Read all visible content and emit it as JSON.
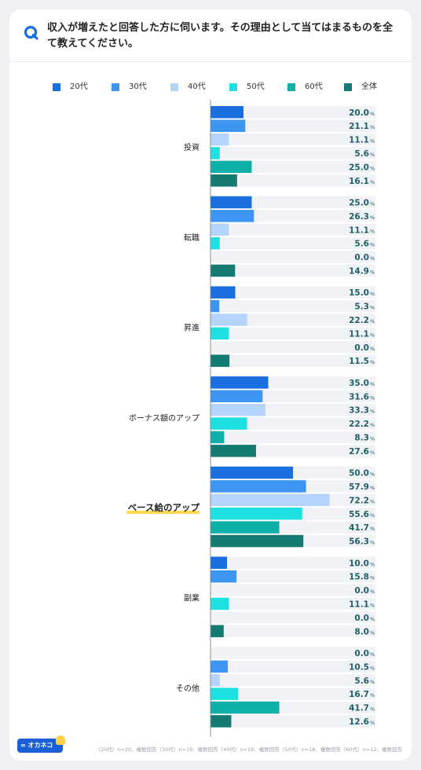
{
  "header": {
    "q_label": "Q",
    "title": "収入が増えたと回答した方に伺います。その理由として当てはまるものを全て教えてください。"
  },
  "footer": {
    "logo_text": "∞ オカネコ",
    "note": "（20代）n=20、複数回答（30代）n=19、複数回答（40代）n=18、複数回答（50代）n=18、複数回答（60代）n=12、複数回答"
  },
  "colors": {
    "20代": "#1a6fe0",
    "30代": "#3d95f2",
    "40代": "#b4d4fb",
    "50代": "#1ee0e0",
    "60代": "#0fb0aa",
    "全体": "#147a72",
    "track": "#f0f2f5",
    "highlight": "#ffd84d",
    "value_text": "#1f5f6a"
  },
  "chart_data": {
    "type": "bar",
    "orientation": "horizontal",
    "xlim": [
      0,
      100
    ],
    "unit": "%",
    "highlighted_category": "ベース給のアップ",
    "categories": [
      "投資",
      "転職",
      "昇進",
      "ボーナス額のアップ",
      "ベース給のアップ",
      "副業",
      "その他"
    ],
    "series": [
      {
        "name": "20代",
        "values": [
          20.0,
          25.0,
          15.0,
          35.0,
          50.0,
          10.0,
          0.0
        ]
      },
      {
        "name": "30代",
        "values": [
          21.1,
          26.3,
          5.3,
          31.6,
          57.9,
          15.8,
          10.5
        ]
      },
      {
        "name": "40代",
        "values": [
          11.1,
          11.1,
          22.2,
          33.3,
          72.2,
          0.0,
          5.6
        ]
      },
      {
        "name": "50代",
        "values": [
          5.6,
          5.6,
          11.1,
          22.2,
          55.6,
          11.1,
          16.7
        ]
      },
      {
        "name": "60代",
        "values": [
          25.0,
          0.0,
          0.0,
          8.3,
          41.7,
          0.0,
          41.7
        ]
      },
      {
        "name": "全体",
        "values": [
          16.1,
          14.9,
          11.5,
          27.6,
          56.3,
          8.0,
          12.6
        ]
      }
    ]
  }
}
